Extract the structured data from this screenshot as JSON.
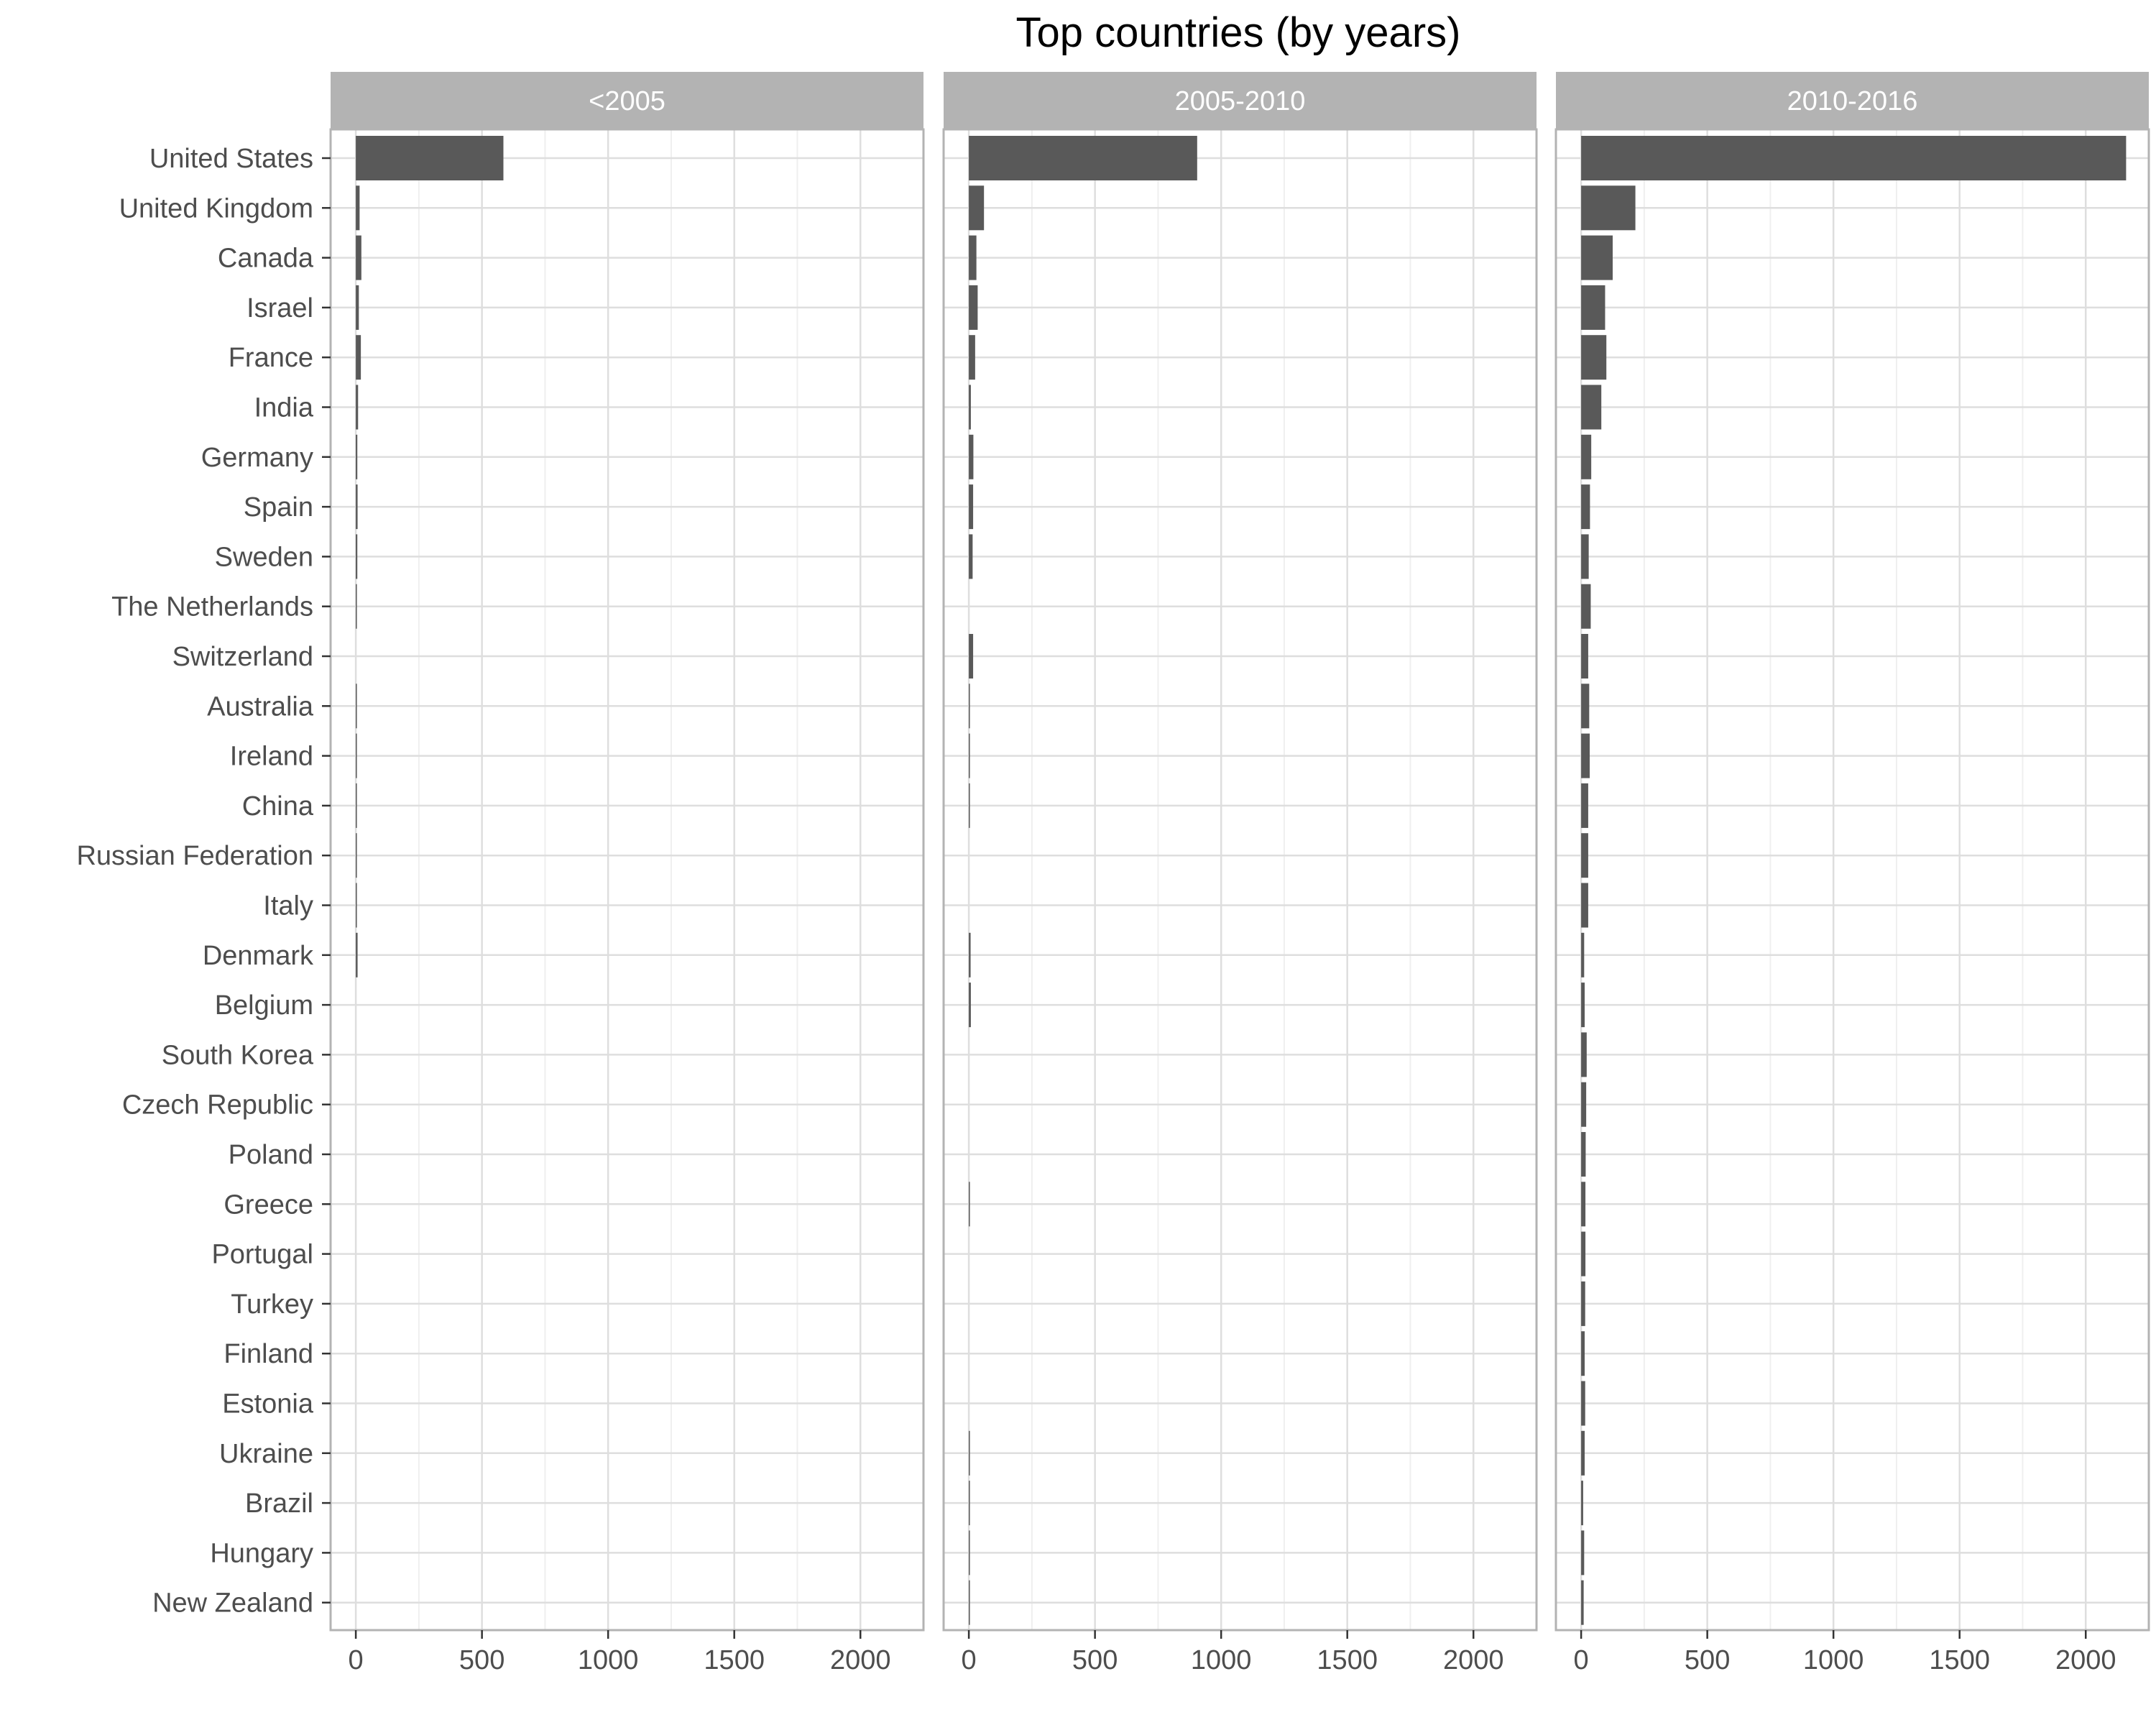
{
  "chart_data": {
    "type": "bar",
    "orientation": "horizontal",
    "title": "Top countries (by years)",
    "xlabel": "",
    "ylabel": "",
    "xlim": [
      -100,
      2250
    ],
    "x_ticks": [
      0,
      500,
      1000,
      1500,
      2000
    ],
    "grid": true,
    "categories": [
      "United States",
      "United Kingdom",
      "Canada",
      "Israel",
      "France",
      "India",
      "Germany",
      "Spain",
      "Sweden",
      "The Netherlands",
      "Switzerland",
      "Australia",
      "Ireland",
      "China",
      "Russian Federation",
      "Italy",
      "Denmark",
      "Belgium",
      "South Korea",
      "Czech Republic",
      "Poland",
      "Greece",
      "Portugal",
      "Turkey",
      "Finland",
      "Estonia",
      "Ukraine",
      "Brazil",
      "Hungary",
      "New Zealand"
    ],
    "series": [
      {
        "name": "<2005",
        "values": [
          585,
          15,
          22,
          12,
          20,
          9,
          6,
          7,
          6,
          4,
          0,
          4,
          2,
          4,
          3,
          2,
          7,
          0,
          0,
          0,
          0,
          0,
          0,
          0,
          0,
          0,
          0,
          0,
          0,
          0
        ]
      },
      {
        "name": "2005-2010",
        "values": [
          905,
          60,
          30,
          35,
          25,
          8,
          18,
          17,
          15,
          0,
          17,
          4,
          4,
          4,
          0,
          0,
          7,
          8,
          0,
          0,
          0,
          3,
          0,
          0,
          0,
          0,
          3,
          4,
          3,
          3
        ]
      },
      {
        "name": "2010-2016",
        "values": [
          2160,
          215,
          125,
          95,
          100,
          80,
          40,
          35,
          30,
          38,
          28,
          32,
          34,
          28,
          28,
          28,
          12,
          14,
          22,
          20,
          18,
          17,
          17,
          16,
          14,
          16,
          14,
          8,
          12,
          10
        ]
      }
    ],
    "colors": {
      "bar": "#595959",
      "strip": "#b3b3b3",
      "grid": "#dedede",
      "border": "#b3b3b3"
    }
  }
}
